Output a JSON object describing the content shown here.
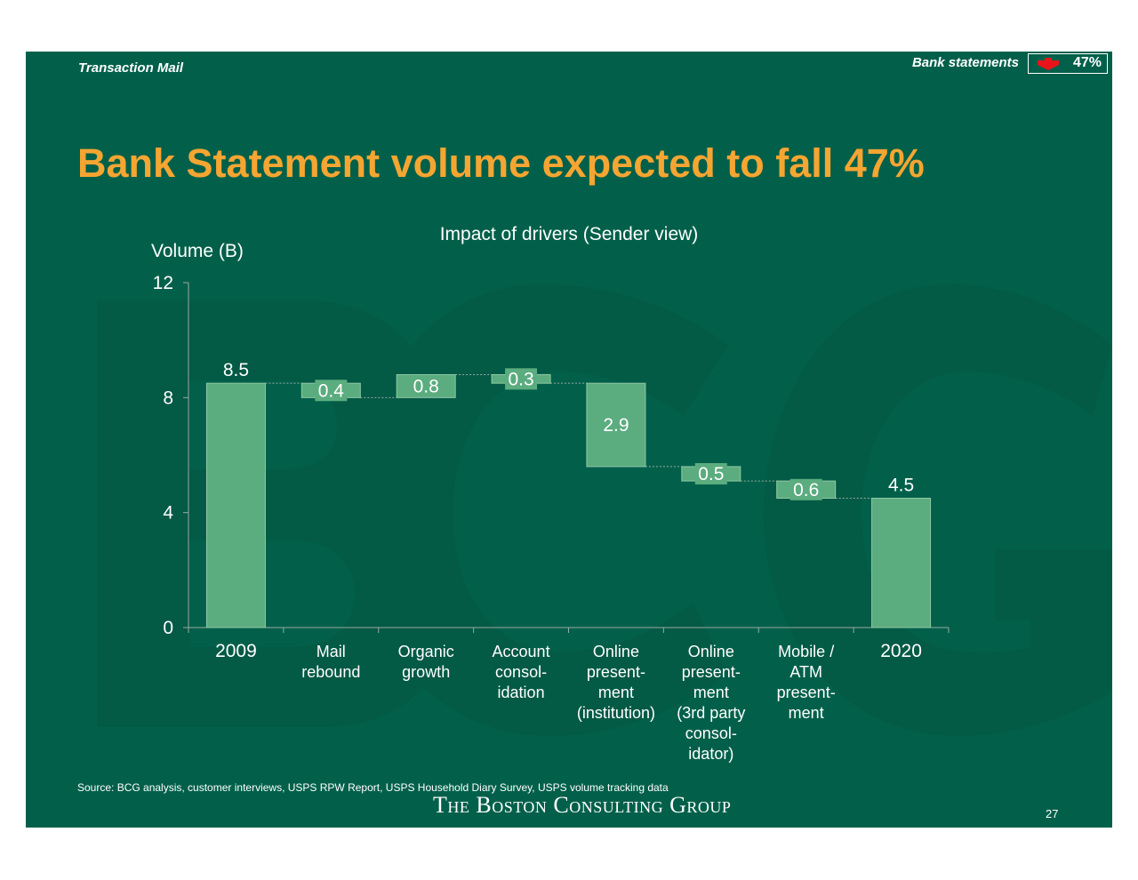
{
  "header": {
    "section": "Transaction Mail",
    "topic": "Bank statements",
    "topic_value": "47%",
    "arrow_icon": "red-down-arrow-icon"
  },
  "title": "Bank Statement volume expected to fall 47%",
  "chart_data": {
    "type": "waterfall",
    "title": "Impact of drivers (Sender view)",
    "ylabel": "Volume (B)",
    "ylim": [
      0,
      12
    ],
    "yticks": [
      0,
      4,
      8,
      12
    ],
    "grid": false,
    "colors": {
      "bar": "#5bac7f",
      "bar_border": "#8fc9a5",
      "text": "#ffffff"
    },
    "categories": [
      {
        "lines": [
          "2009"
        ]
      },
      {
        "lines": [
          "Mail",
          "rebound"
        ]
      },
      {
        "lines": [
          "Organic",
          "growth"
        ]
      },
      {
        "lines": [
          "Account",
          "consol-",
          "idation"
        ]
      },
      {
        "lines": [
          "Online",
          "present-",
          "ment",
          "(institution)"
        ]
      },
      {
        "lines": [
          "Online",
          "present-",
          "ment",
          "(3rd party",
          "consol-",
          "idator)"
        ]
      },
      {
        "lines": [
          "Mobile /",
          "ATM",
          "present-",
          "ment"
        ]
      },
      {
        "lines": [
          "2020"
        ]
      }
    ],
    "bars": [
      {
        "kind": "total",
        "start": 0,
        "end": 8.5,
        "label": "8.5"
      },
      {
        "kind": "delta",
        "start": 8.5,
        "end": 8.0,
        "label": "0.4"
      },
      {
        "kind": "delta",
        "start": 8.0,
        "end": 8.8,
        "label": "0.8"
      },
      {
        "kind": "delta",
        "start": 8.8,
        "end": 8.5,
        "label": "0.3"
      },
      {
        "kind": "delta",
        "start": 8.5,
        "end": 5.6,
        "label": "2.9"
      },
      {
        "kind": "delta",
        "start": 5.6,
        "end": 5.1,
        "label": "0.5"
      },
      {
        "kind": "delta",
        "start": 5.1,
        "end": 4.5,
        "label": "0.6"
      },
      {
        "kind": "total",
        "start": 0,
        "end": 4.5,
        "label": "4.5"
      }
    ]
  },
  "footer": {
    "source": "Source: BCG analysis, customer interviews, USPS RPW Report, USPS Household Diary Survey, USPS volume tracking data",
    "logo": "The Boston Consulting Group",
    "page": "27"
  }
}
